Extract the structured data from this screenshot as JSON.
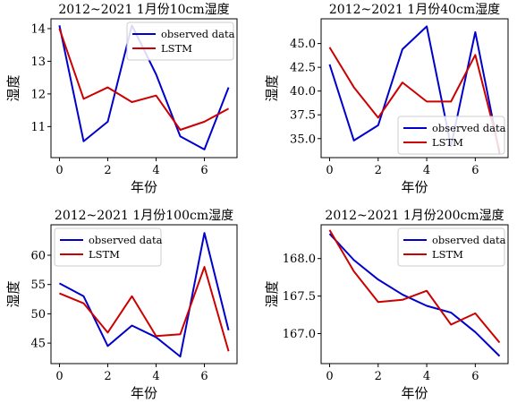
{
  "chart_data": [
    {
      "type": "line",
      "title": "2012~2021 1月份10cm湿度",
      "xlabel": "年份",
      "ylabel": "湿度",
      "x": [
        0,
        1,
        2,
        3,
        4,
        5,
        6,
        7
      ],
      "xticks": [
        "0",
        "2",
        "4",
        "6"
      ],
      "xtick_values": [
        0,
        2,
        4,
        6
      ],
      "yticks": [
        "11",
        "12",
        "13",
        "14"
      ],
      "ytick_values": [
        11,
        12,
        13,
        14
      ],
      "xlim": [
        -0.35,
        7.35
      ],
      "ylim": [
        10.05,
        14.3
      ],
      "legend": "top-right",
      "series": [
        {
          "name": "observed data",
          "color": "#0000cc",
          "values": [
            14.1,
            10.55,
            11.15,
            14.1,
            12.6,
            10.7,
            10.3,
            12.2
          ]
        },
        {
          "name": "LSTM",
          "color": "#cc0000",
          "values": [
            14.0,
            11.85,
            12.2,
            11.75,
            11.95,
            10.9,
            11.15,
            11.55
          ]
        }
      ]
    },
    {
      "type": "line",
      "title": "2012~2021 1月份40cm湿度",
      "xlabel": "年份",
      "ylabel": "湿度",
      "x": [
        0,
        1,
        2,
        3,
        4,
        5,
        6,
        7
      ],
      "xticks": [
        "0",
        "2",
        "4",
        "6"
      ],
      "xtick_values": [
        0,
        2,
        4,
        6
      ],
      "yticks": [
        "35.0",
        "37.5",
        "40.0",
        "42.5",
        "45.0"
      ],
      "ytick_values": [
        35.0,
        37.5,
        40.0,
        42.5,
        45.0
      ],
      "xlim": [
        -0.35,
        7.35
      ],
      "ylim": [
        33.0,
        47.6
      ],
      "legend": "bottom-right",
      "series": [
        {
          "name": "observed data",
          "color": "#0000cc",
          "values": [
            42.8,
            34.8,
            36.4,
            44.4,
            46.8,
            34.2,
            46.2,
            33.4
          ]
        },
        {
          "name": "LSTM",
          "color": "#cc0000",
          "values": [
            44.6,
            40.4,
            37.2,
            40.9,
            38.9,
            38.9,
            43.8,
            33.7
          ]
        }
      ]
    },
    {
      "type": "line",
      "title": "2012~2021 1月份100cm湿度",
      "xlabel": "年份",
      "ylabel": "湿度",
      "x": [
        0,
        1,
        2,
        3,
        4,
        5,
        6,
        7
      ],
      "xticks": [
        "0",
        "2",
        "4",
        "6"
      ],
      "xtick_values": [
        0,
        2,
        4,
        6
      ],
      "yticks": [
        "45",
        "50",
        "55",
        "60"
      ],
      "ytick_values": [
        45,
        50,
        55,
        60
      ],
      "xlim": [
        -0.35,
        7.35
      ],
      "ylim": [
        41.5,
        65.2
      ],
      "legend": "top-left",
      "series": [
        {
          "name": "observed data",
          "color": "#0000cc",
          "values": [
            55.2,
            53.0,
            44.5,
            48.0,
            46.0,
            42.7,
            63.8,
            47.2
          ]
        },
        {
          "name": "LSTM",
          "color": "#cc0000",
          "values": [
            53.5,
            51.8,
            46.8,
            53.0,
            46.2,
            46.5,
            58.0,
            43.6
          ]
        }
      ]
    },
    {
      "type": "line",
      "title": "2012~2021 1月份200cm湿度",
      "xlabel": "年份",
      "ylabel": "湿度",
      "x": [
        0,
        1,
        2,
        3,
        4,
        5,
        6,
        7
      ],
      "xticks": [
        "0",
        "2",
        "4",
        "6"
      ],
      "xtick_values": [
        0,
        2,
        4,
        6
      ],
      "yticks": [
        "167.0",
        "167.5",
        "168.0"
      ],
      "ytick_values": [
        167.0,
        167.5,
        168.0
      ],
      "xlim": [
        -0.35,
        7.35
      ],
      "ylim": [
        166.6,
        168.45
      ],
      "legend": "top-right",
      "series": [
        {
          "name": "observed data",
          "color": "#0000cc",
          "values": [
            168.33,
            167.98,
            167.72,
            167.52,
            167.37,
            167.28,
            167.02,
            166.7
          ]
        },
        {
          "name": "LSTM",
          "color": "#cc0000",
          "values": [
            168.38,
            167.83,
            167.42,
            167.45,
            167.57,
            167.12,
            167.27,
            166.88
          ]
        }
      ]
    }
  ]
}
